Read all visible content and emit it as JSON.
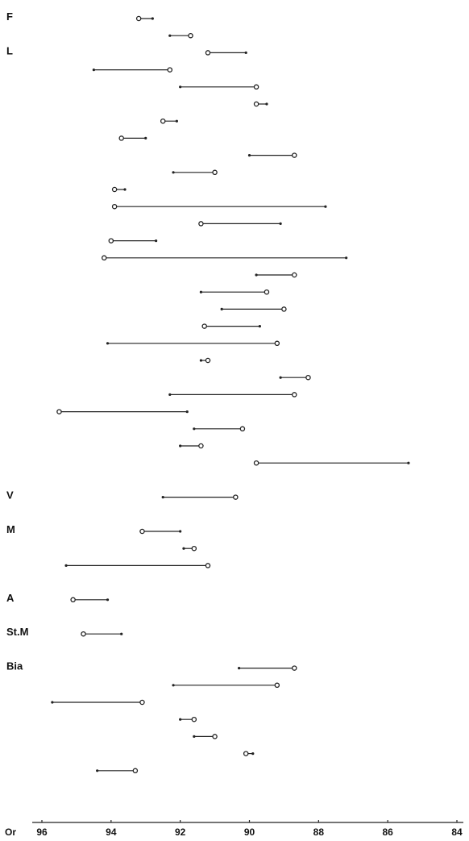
{
  "chart_data": {
    "type": "range",
    "xlabel": "Or",
    "xlim": [
      96,
      84
    ],
    "x_ticks": [
      96,
      94,
      92,
      90,
      88,
      86,
      84
    ],
    "x_tick_labels": [
      "96",
      "94",
      "92",
      "90",
      "88",
      "86",
      "84"
    ],
    "groups": [
      {
        "label": "F",
        "start_row": 0
      },
      {
        "label": "L",
        "start_row": 2
      },
      {
        "label": "V",
        "start_row": 28
      },
      {
        "label": "M",
        "start_row": 30
      },
      {
        "label": "A",
        "start_row": 34
      },
      {
        "label": "St.M",
        "start_row": 36
      },
      {
        "label": "Bia",
        "start_row": 38
      }
    ],
    "rows": [
      {
        "row": 0,
        "open": 93.2,
        "closed": 92.8
      },
      {
        "row": 1,
        "open": 91.7,
        "closed": 92.3
      },
      {
        "row": 2,
        "open": 91.2,
        "closed": 90.1
      },
      {
        "row": 3,
        "open": 92.3,
        "closed": 94.5
      },
      {
        "row": 4,
        "open": 89.8,
        "closed": 92.0
      },
      {
        "row": 5,
        "open": 89.8,
        "closed": 89.5
      },
      {
        "row": 6,
        "open": 92.5,
        "closed": 92.1
      },
      {
        "row": 7,
        "open": 93.7,
        "closed": 93.0
      },
      {
        "row": 8,
        "open": 88.7,
        "closed": 90.0
      },
      {
        "row": 9,
        "open": 91.0,
        "closed": 92.2
      },
      {
        "row": 10,
        "open": 93.9,
        "closed": 93.6
      },
      {
        "row": 11,
        "open": 93.9,
        "closed": 87.8
      },
      {
        "row": 12,
        "open": 91.4,
        "closed": 89.1
      },
      {
        "row": 13,
        "open": 94.0,
        "closed": 92.7
      },
      {
        "row": 14,
        "open": 94.2,
        "closed": 87.2
      },
      {
        "row": 15,
        "open": 88.7,
        "closed": 89.8
      },
      {
        "row": 16,
        "open": 89.5,
        "closed": 91.4
      },
      {
        "row": 17,
        "open": 89.0,
        "closed": 90.8
      },
      {
        "row": 18,
        "open": 91.3,
        "closed": 89.7
      },
      {
        "row": 19,
        "open": 89.2,
        "closed": 94.1
      },
      {
        "row": 20,
        "open": 91.2,
        "closed": 91.4
      },
      {
        "row": 21,
        "open": 88.3,
        "closed": 89.1
      },
      {
        "row": 22,
        "open": 88.7,
        "closed": 92.3
      },
      {
        "row": 23,
        "open": 95.5,
        "closed": 91.8
      },
      {
        "row": 24,
        "open": 90.2,
        "closed": 91.6
      },
      {
        "row": 25,
        "open": 91.4,
        "closed": 92.0
      },
      {
        "row": 26,
        "open": 89.8,
        "closed": 85.4
      },
      {
        "row": 28,
        "open": 90.4,
        "closed": 92.5
      },
      {
        "row": 30,
        "open": 93.1,
        "closed": 92.0
      },
      {
        "row": 31,
        "open": 91.6,
        "closed": 91.9
      },
      {
        "row": 32,
        "open": 91.2,
        "closed": 95.3
      },
      {
        "row": 34,
        "open": 95.1,
        "closed": 94.1
      },
      {
        "row": 36,
        "open": 94.8,
        "closed": 93.7
      },
      {
        "row": 38,
        "open": 88.7,
        "closed": 90.3
      },
      {
        "row": 39,
        "open": 89.2,
        "closed": 92.2
      },
      {
        "row": 40,
        "open": 93.1,
        "closed": 95.7
      },
      {
        "row": 41,
        "open": 91.6,
        "closed": 92.0
      },
      {
        "row": 42,
        "open": 91.0,
        "closed": 91.6
      },
      {
        "row": 43,
        "open": 90.1,
        "closed": 89.9
      },
      {
        "row": 44,
        "open": 93.3,
        "closed": 94.4
      }
    ]
  }
}
